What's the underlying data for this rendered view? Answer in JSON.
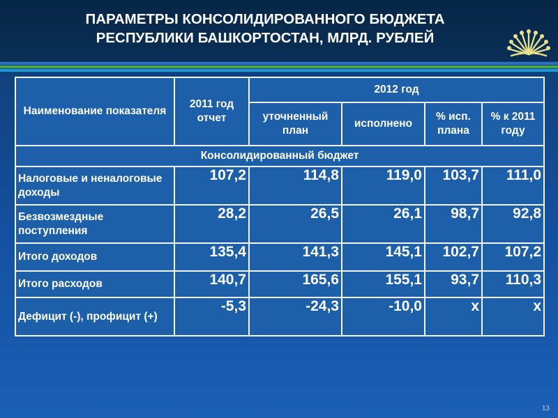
{
  "slide": {
    "title_line1": "ПАРАМЕТРЫ КОНСОЛИДИРОВАННОГО БЮДЖЕТА",
    "title_line2": "РЕСПУБЛИКИ БАШКОРТОСТАН, МЛРД. РУБЛЕЙ",
    "page_number": "13",
    "logo_icon": "kurai-flower-emblem-icon",
    "colors": {
      "title": "#ffffff",
      "header_band": "#0a2f57",
      "background": "#1450a0",
      "logo": "#e8e08a"
    }
  },
  "table": {
    "header": {
      "name_col": "Наименование показателя",
      "col_2011": "2011 год отчет",
      "group_2012": "2012 год",
      "sub_refined_plan": "уточненный план",
      "sub_executed": "исполнено",
      "sub_pct_plan": "% исп. плана",
      "sub_pct_2011": "% к 2011 году"
    },
    "section_label": "Консолидированный бюджет",
    "rows": [
      {
        "label": "Налоговые и неналоговые доходы",
        "v2011": "107,2",
        "plan": "114,8",
        "executed": "119,0",
        "pct_plan": "103,7",
        "pct_2011": "111,0"
      },
      {
        "label": "Безвозмездные поступления",
        "v2011": "28,2",
        "plan": "26,5",
        "executed": "26,1",
        "pct_plan": "98,7",
        "pct_2011": "92,8"
      },
      {
        "label": "Итого доходов",
        "v2011": "135,4",
        "plan": "141,3",
        "executed": "145,1",
        "pct_plan": "102,7",
        "pct_2011": "107,2"
      },
      {
        "label": "Итого расходов",
        "v2011": "140,7",
        "plan": "165,6",
        "executed": "155,1",
        "pct_plan": "93,7",
        "pct_2011": "110,3"
      },
      {
        "label": "Дефицит (-), профицит (+)",
        "v2011": "-5,3",
        "plan": "-24,3",
        "executed": "-10,0",
        "pct_plan": "х",
        "pct_2011": "х"
      }
    ]
  }
}
